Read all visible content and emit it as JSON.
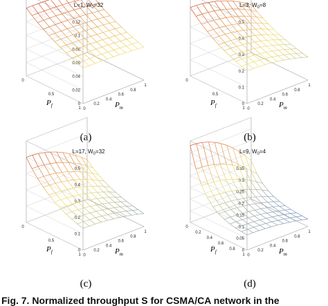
{
  "colors": {
    "low": "#5b7fd6",
    "mid": "#f0e070",
    "high": "#d64d2e",
    "box": "#9a9a9a"
  },
  "caption": "Fig. 7. Normalized throughput S for CSMA/CA network in the",
  "chart_data": [
    {
      "type": "surface",
      "title": "L=1, W",
      "title_sub": "0",
      "title_tail": "=32",
      "letter": "(a)",
      "xlabel": "P",
      "xlabel_sub": "f",
      "ylabel": "P",
      "ylabel_sub": "m",
      "x_ticks": [
        "0",
        "0.5",
        "1"
      ],
      "y_ticks": [
        "0",
        "0.2",
        "0.4",
        "0.6",
        "0.8",
        "1"
      ],
      "z_ticks": [
        "0",
        "0.02",
        "0.04",
        "0.06",
        "0.08",
        "0.1",
        "0.12"
      ],
      "zlim": [
        0,
        0.12
      ],
      "s_max": 0.1,
      "s_min": 0.02,
      "decay": 0.9,
      "pm_effect": 0.07,
      "grid_n": 10
    },
    {
      "type": "surface",
      "title": "L=3, W",
      "title_sub": "0",
      "title_tail": "=8",
      "letter": "(b)",
      "xlabel": "P",
      "xlabel_sub": "f",
      "ylabel": "P",
      "ylabel_sub": "m",
      "x_ticks": [
        "0",
        "0.5",
        "1"
      ],
      "y_ticks": [
        "0",
        "0.2",
        "0.4",
        "0.6",
        "0.8",
        "1"
      ],
      "z_ticks": [
        "0",
        "0.1",
        "0.2",
        "0.3",
        "0.4",
        "0.5"
      ],
      "zlim": [
        0,
        0.5
      ],
      "s_max": 0.42,
      "s_min": 0.12,
      "decay": 1.3,
      "pm_effect": 0.3,
      "grid_n": 10
    },
    {
      "type": "surface",
      "title": "L=17, W",
      "title_sub": "0",
      "title_tail": "=32",
      "letter": "(c)",
      "xlabel": "P",
      "xlabel_sub": "f",
      "ylabel": "P",
      "ylabel_sub": "m",
      "x_ticks": [
        "0",
        "0.5",
        "1"
      ],
      "y_ticks": [
        "0",
        "0.2",
        "0.4",
        "0.6",
        "0.8",
        "1"
      ],
      "z_ticks": [
        "0",
        "0.1",
        "0.2",
        "0.3",
        "0.4",
        "0.5"
      ],
      "zlim": [
        0,
        0.5
      ],
      "s_max": 0.4,
      "s_min": 0.08,
      "decay": 1.8,
      "pm_effect": 0.4,
      "grid_n": 10
    },
    {
      "type": "surface",
      "title": "L=9, W",
      "title_sub": "0",
      "title_tail": "=4",
      "letter": "(d)",
      "xlabel": "P",
      "xlabel_sub": "f",
      "ylabel": "P",
      "ylabel_sub": "m",
      "x_ticks": [
        "0",
        "0.2",
        "0.4",
        "0.6",
        "0.8",
        "1"
      ],
      "y_ticks": [
        "0",
        "0.2",
        "0.4",
        "0.6",
        "0.8",
        "1"
      ],
      "z_ticks": [
        "0",
        "0.05",
        "0.1",
        "0.15",
        "0.2",
        "0.25",
        "0.3",
        "0.35"
      ],
      "zlim": [
        0,
        0.35
      ],
      "s_max": 0.33,
      "s_min": 0.06,
      "decay": 4.0,
      "pm_effect": 0.5,
      "grid_n": 10
    }
  ]
}
